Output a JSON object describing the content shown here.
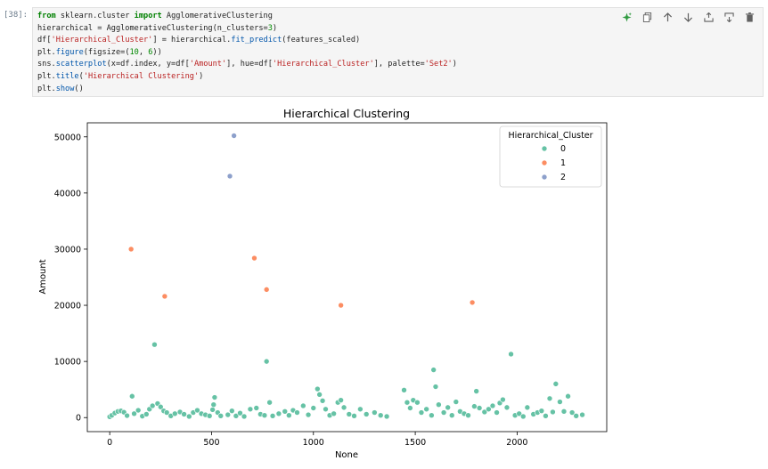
{
  "cell": {
    "prompt": "[38]:",
    "lines": [
      "from sklearn.cluster import AgglomerativeClustering",
      "hierarchical = AgglomerativeClustering(n_clusters=3)",
      "df['Hierarchical_Cluster'] = hierarchical.fit_predict(features_scaled)",
      "plt.figure(figsize=(10, 6))",
      "sns.scatterplot(x=df.index, y=df['Amount'], hue=df['Hierarchical_Cluster'], palette='Set2')",
      "plt.title('Hierarchical Clustering')",
      "plt.show()"
    ]
  },
  "toolbar": {
    "icons": [
      "sparkle-icon",
      "duplicate-icon",
      "move-up-icon",
      "move-down-icon",
      "insert-above-icon",
      "insert-below-icon",
      "delete-icon"
    ],
    "accent": "#2e9a3f",
    "icon_color": "#616161"
  },
  "chart_data": {
    "type": "scatter",
    "title": "Hierarchical Clustering",
    "xlabel": "None",
    "ylabel": "Amount",
    "xlim": [
      -110,
      2440
    ],
    "ylim": [
      -2500,
      52500
    ],
    "xticks": [
      0,
      500,
      1000,
      1500,
      2000
    ],
    "yticks": [
      0,
      10000,
      20000,
      30000,
      40000,
      50000
    ],
    "grid": false,
    "legend": {
      "title": "Hierarchical_Cluster",
      "placement": "top-right"
    },
    "series": [
      {
        "name": "0",
        "color": "#66c2a5",
        "points": [
          [
            0,
            150
          ],
          [
            10,
            400
          ],
          [
            25,
            800
          ],
          [
            40,
            1100
          ],
          [
            55,
            1200
          ],
          [
            70,
            950
          ],
          [
            85,
            350
          ],
          [
            110,
            3800
          ],
          [
            120,
            700
          ],
          [
            140,
            1300
          ],
          [
            160,
            250
          ],
          [
            180,
            600
          ],
          [
            195,
            1500
          ],
          [
            210,
            2100
          ],
          [
            220,
            13000
          ],
          [
            235,
            2500
          ],
          [
            250,
            1900
          ],
          [
            265,
            1200
          ],
          [
            280,
            900
          ],
          [
            300,
            300
          ],
          [
            320,
            700
          ],
          [
            345,
            1000
          ],
          [
            365,
            600
          ],
          [
            390,
            200
          ],
          [
            410,
            900
          ],
          [
            430,
            1300
          ],
          [
            450,
            700
          ],
          [
            470,
            500
          ],
          [
            490,
            300
          ],
          [
            505,
            1400
          ],
          [
            510,
            2300
          ],
          [
            515,
            3600
          ],
          [
            530,
            900
          ],
          [
            545,
            300
          ],
          [
            580,
            500
          ],
          [
            600,
            1200
          ],
          [
            620,
            300
          ],
          [
            640,
            800
          ],
          [
            660,
            200
          ],
          [
            690,
            1500
          ],
          [
            720,
            1700
          ],
          [
            740,
            600
          ],
          [
            760,
            400
          ],
          [
            770,
            10000
          ],
          [
            785,
            2700
          ],
          [
            800,
            300
          ],
          [
            830,
            700
          ],
          [
            860,
            1100
          ],
          [
            880,
            400
          ],
          [
            900,
            1300
          ],
          [
            920,
            900
          ],
          [
            950,
            2100
          ],
          [
            975,
            500
          ],
          [
            1000,
            1700
          ],
          [
            1020,
            5100
          ],
          [
            1030,
            4100
          ],
          [
            1045,
            3000
          ],
          [
            1060,
            1500
          ],
          [
            1080,
            400
          ],
          [
            1100,
            700
          ],
          [
            1120,
            2700
          ],
          [
            1135,
            3100
          ],
          [
            1150,
            1800
          ],
          [
            1175,
            600
          ],
          [
            1200,
            300
          ],
          [
            1230,
            1500
          ],
          [
            1260,
            600
          ],
          [
            1300,
            900
          ],
          [
            1330,
            400
          ],
          [
            1360,
            200
          ],
          [
            1445,
            4900
          ],
          [
            1460,
            2700
          ],
          [
            1475,
            1700
          ],
          [
            1490,
            3100
          ],
          [
            1510,
            2700
          ],
          [
            1530,
            900
          ],
          [
            1555,
            1500
          ],
          [
            1580,
            400
          ],
          [
            1590,
            8500
          ],
          [
            1600,
            5500
          ],
          [
            1615,
            2300
          ],
          [
            1640,
            900
          ],
          [
            1660,
            1800
          ],
          [
            1680,
            400
          ],
          [
            1700,
            2800
          ],
          [
            1720,
            1100
          ],
          [
            1740,
            700
          ],
          [
            1760,
            400
          ],
          [
            1790,
            2000
          ],
          [
            1800,
            4700
          ],
          [
            1815,
            1700
          ],
          [
            1840,
            1000
          ],
          [
            1860,
            1500
          ],
          [
            1880,
            2100
          ],
          [
            1900,
            900
          ],
          [
            1915,
            2600
          ],
          [
            1930,
            3200
          ],
          [
            1950,
            1800
          ],
          [
            1970,
            11300
          ],
          [
            1990,
            400
          ],
          [
            2010,
            700
          ],
          [
            2030,
            200
          ],
          [
            2050,
            1800
          ],
          [
            2080,
            600
          ],
          [
            2100,
            900
          ],
          [
            2120,
            1200
          ],
          [
            2140,
            300
          ],
          [
            2160,
            3400
          ],
          [
            2175,
            1000
          ],
          [
            2190,
            6000
          ],
          [
            2210,
            2800
          ],
          [
            2230,
            1100
          ],
          [
            2250,
            3800
          ],
          [
            2270,
            900
          ],
          [
            2290,
            300
          ],
          [
            2320,
            500
          ]
        ]
      },
      {
        "name": "1",
        "color": "#fc8d62",
        "points": [
          [
            105,
            30000
          ],
          [
            270,
            21600
          ],
          [
            710,
            28400
          ],
          [
            770,
            22800
          ],
          [
            1135,
            20000
          ],
          [
            1780,
            20500
          ]
        ]
      },
      {
        "name": "2",
        "color": "#8da0cb",
        "points": [
          [
            590,
            43000
          ],
          [
            610,
            50200
          ]
        ]
      }
    ]
  }
}
